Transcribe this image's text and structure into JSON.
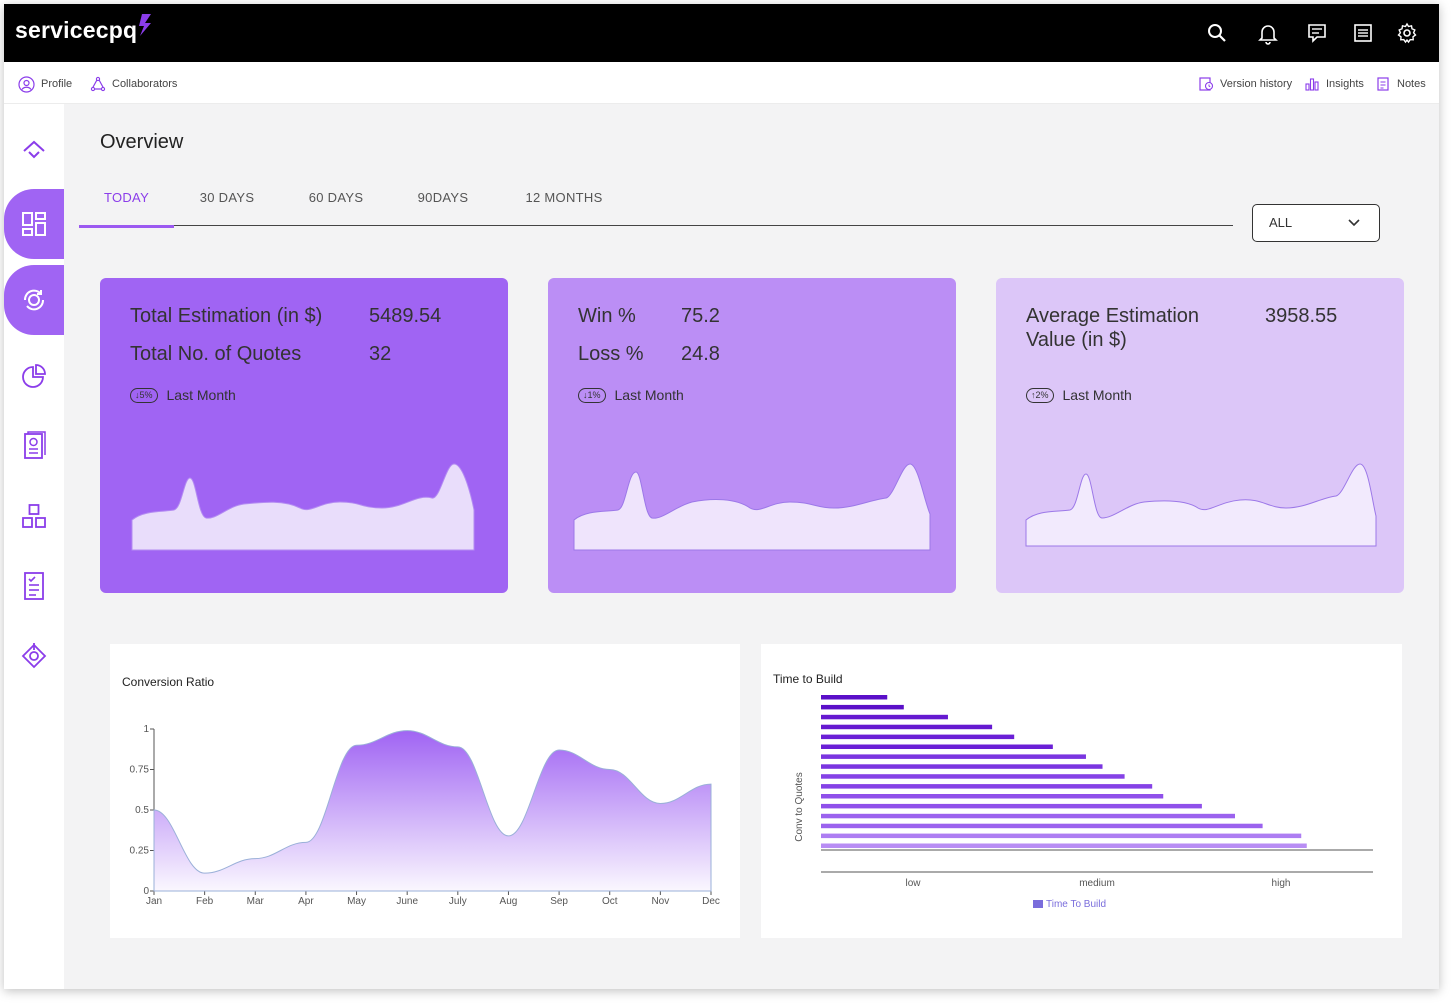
{
  "app": {
    "logo_text": "servicecpq"
  },
  "topbar": {
    "icons": [
      "search-icon",
      "bell-icon",
      "chat-icon",
      "list-icon",
      "gear-icon"
    ]
  },
  "subbar": {
    "profile": "Profile",
    "collaborators": "Collaborators",
    "version_history": "Version history",
    "insights": "Insights",
    "notes": "Notes"
  },
  "sidebar": {
    "icons": [
      "home-icon",
      "dashboard-icon",
      "sync-icon",
      "pie-chart-icon",
      "document-icon",
      "modules-icon",
      "checklist-icon",
      "target-icon"
    ]
  },
  "page": {
    "title": "Overview"
  },
  "tabs": [
    {
      "label": "TODAY",
      "active": true
    },
    {
      "label": "30 DAYS",
      "active": false
    },
    {
      "label": "60 DAYS",
      "active": false
    },
    {
      "label": "90DAYS",
      "active": false
    },
    {
      "label": "12 MONTHS",
      "active": false
    }
  ],
  "filter": {
    "selected": "ALL"
  },
  "cards": [
    {
      "color": "#a064f3",
      "row1_label": "Total Estimation (in $)",
      "row1_value": "5489.54",
      "row2_label": "Total No. of Quotes",
      "row2_value": "32",
      "trend": "↓5%",
      "trend_label": "Last Month"
    },
    {
      "color": "#bb8ef5",
      "row1_label": "Win %",
      "row1_value": "75.2",
      "row2_label": "Loss %",
      "row2_value": "24.8",
      "trend": "↓1%",
      "trend_label": "Last Month"
    },
    {
      "color": "#dcc6f8",
      "row1_label": "Average Estimation",
      "row1_label_line2": "Value (in $)",
      "row1_value": "3958.55",
      "trend": "↑2%",
      "trend_label": "Last Month"
    }
  ],
  "conversion_chart": {
    "title": "Conversion Ratio",
    "chart_data": {
      "type": "area",
      "categories": [
        "Jan",
        "Feb",
        "Mar",
        "Apr",
        "May",
        "June",
        "July",
        "Aug",
        "Sep",
        "Oct",
        "Nov",
        "Dec"
      ],
      "values": [
        0.5,
        0.11,
        0.2,
        0.3,
        0.9,
        0.99,
        0.89,
        0.34,
        0.87,
        0.75,
        0.54,
        0.66
      ],
      "yticks": [
        "0",
        "0.25",
        "0.5",
        "0.75",
        "1"
      ],
      "ylim": [
        0,
        1
      ],
      "fill_color": "#a064f3"
    }
  },
  "build_chart": {
    "title": "Time to Build",
    "chart_data": {
      "type": "bar",
      "orientation": "horizontal",
      "ylabel": "Conv to Quotes",
      "xticks": [
        "low",
        "medium",
        "high"
      ],
      "legend": "Time To Build",
      "values": [
        0.12,
        0.15,
        0.23,
        0.31,
        0.35,
        0.42,
        0.48,
        0.51,
        0.55,
        0.6,
        0.62,
        0.69,
        0.75,
        0.8,
        0.87,
        0.88
      ],
      "colors": [
        "#5a0fc8",
        "#5a0fc8",
        "#6519d0",
        "#6519d0",
        "#6a1fd6",
        "#6a1fd6",
        "#7a35e0",
        "#7a35e0",
        "#8542e6",
        "#8542e6",
        "#8f50ea",
        "#8f50ea",
        "#9b62ee",
        "#9b62ee",
        "#ad7df2",
        "#b88df4"
      ]
    }
  }
}
